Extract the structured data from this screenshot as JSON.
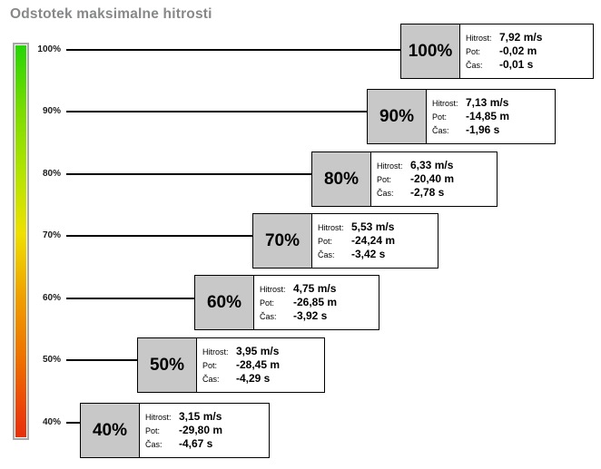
{
  "title": "Odstotek maksimalne hitrosti",
  "colors": {
    "title_text": "#878889",
    "box_percent_cell_bg": "#c8c8c8",
    "box_border": "#000000",
    "gradient_top_green": "#26d506",
    "gradient_mid_yellow": "#efe000",
    "gradient_bottom_red": "#e8300c",
    "colorbar_border": "#a8a8a8"
  },
  "levels": [
    {
      "percent": "100%",
      "rows": [
        {
          "label": "Hitrost:",
          "value": "7,92 m/s"
        },
        {
          "label": "Pot:",
          "value": "-0,02 m"
        },
        {
          "label": "Čas:",
          "value": "-0,01 s"
        }
      ]
    },
    {
      "percent": "90%",
      "rows": [
        {
          "label": "Hitrost:",
          "value": "7,13 m/s"
        },
        {
          "label": "Pot:",
          "value": "-14,85 m"
        },
        {
          "label": "Čas:",
          "value": "-1,96 s"
        }
      ]
    },
    {
      "percent": "80%",
      "rows": [
        {
          "label": "Hitrost:",
          "value": "6,33 m/s"
        },
        {
          "label": "Pot:",
          "value": "-20,40 m"
        },
        {
          "label": "Čas:",
          "value": "-2,78 s"
        }
      ]
    },
    {
      "percent": "70%",
      "rows": [
        {
          "label": "Hitrost:",
          "value": "5,53 m/s"
        },
        {
          "label": "Pot:",
          "value": "-24,24 m"
        },
        {
          "label": "Čas:",
          "value": "-3,42 s"
        }
      ]
    },
    {
      "percent": "60%",
      "rows": [
        {
          "label": "Hitrost:",
          "value": "4,75 m/s"
        },
        {
          "label": "Pot:",
          "value": "-26,85 m"
        },
        {
          "label": "Čas:",
          "value": "-3,92 s"
        }
      ]
    },
    {
      "percent": "50%",
      "rows": [
        {
          "label": "Hitrost:",
          "value": "3,95 m/s"
        },
        {
          "label": "Pot:",
          "value": "-28,45 m"
        },
        {
          "label": "Čas:",
          "value": "-4,29 s"
        }
      ]
    },
    {
      "percent": "40%",
      "rows": [
        {
          "label": "Hitrost:",
          "value": "3,15 m/s"
        },
        {
          "label": "Pot:",
          "value": "-29,80 m"
        },
        {
          "label": "Čas:",
          "value": "-4,67 s"
        }
      ]
    }
  ],
  "chart_data": {
    "type": "table",
    "title": "Odstotek maksimalne hitrosti",
    "categories": [
      "100%",
      "90%",
      "80%",
      "70%",
      "60%",
      "50%",
      "40%"
    ],
    "series": [
      {
        "name": "Hitrost (m/s)",
        "values": [
          7.92,
          7.13,
          6.33,
          5.53,
          4.75,
          3.95,
          3.15
        ]
      },
      {
        "name": "Pot (m)",
        "values": [
          -0.02,
          -14.85,
          -20.4,
          -24.24,
          -26.85,
          -28.45,
          -29.8
        ]
      },
      {
        "name": "Čas (s)",
        "values": [
          -0.01,
          -1.96,
          -2.78,
          -3.42,
          -3.92,
          -4.29,
          -4.67
        ]
      }
    ],
    "axis": {
      "tick_labels": [
        "100%",
        "90%",
        "80%",
        "70%",
        "60%",
        "50%",
        "40%"
      ],
      "color_scale": "green (100%) to yellow (70%) to red (40%)",
      "orientation": "vertical, descending"
    },
    "layout_hint": "diagonal cascade of annotation boxes, one per speed percentage; gradient color bar on left; grid off; no legend"
  }
}
